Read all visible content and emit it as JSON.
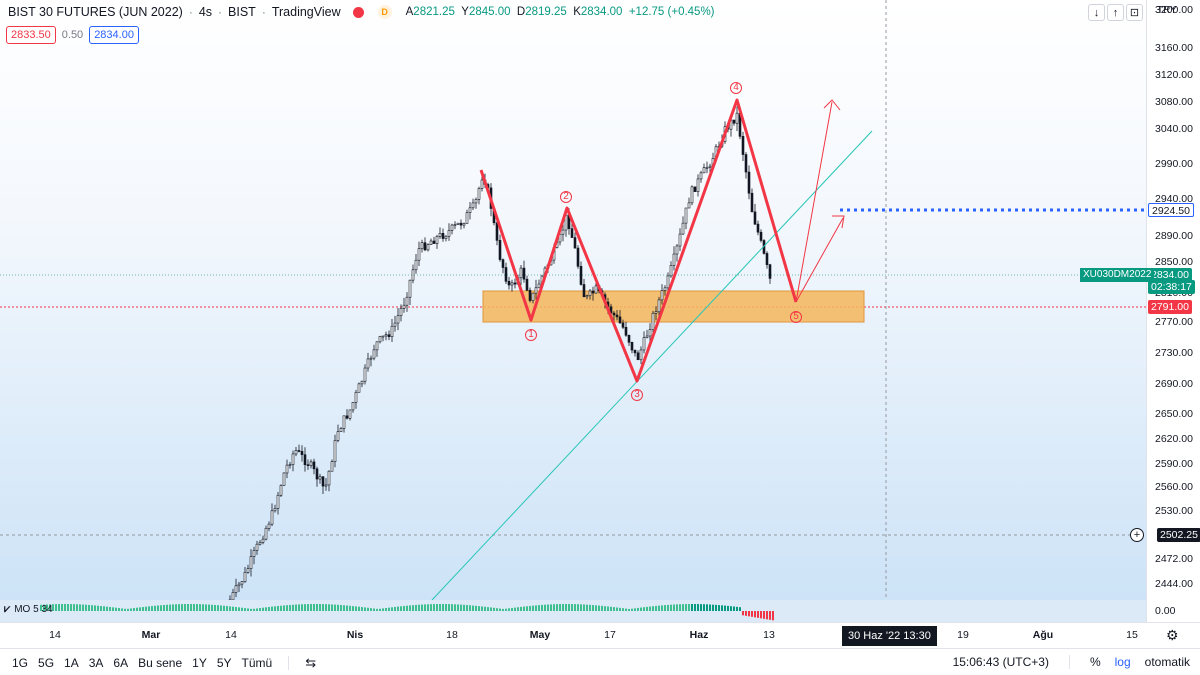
{
  "header": {
    "title": "BIST 30 FUTURES (JUN 2022)",
    "interval": "4s",
    "exchange": "BIST",
    "source": "TradingView",
    "d_badge": "D",
    "ohlc": {
      "open_label": "A",
      "open": "2821.25",
      "high_label": "Y",
      "high": "2845.00",
      "low_label": "D",
      "low": "2819.25",
      "close_label": "K",
      "close": "2834.00",
      "change": "+12.75 (+0.45%)"
    },
    "sell": "2833.50",
    "spread": "0.50",
    "buy": "2834.00",
    "buttons": [
      "↓",
      "↑",
      "⊡"
    ]
  },
  "price_scale": {
    "currency": "TRY",
    "ticks": [
      "3200.00",
      "3160.00",
      "3120.00",
      "3080.00",
      "3040.00",
      "2990.00",
      "2940.00",
      "2890.00",
      "2850.00",
      "2810.00",
      "2770.00",
      "2730.00",
      "2690.00",
      "2650.00",
      "2620.00",
      "2590.00",
      "2560.00",
      "2530.00",
      "2472.00",
      "2444.00"
    ],
    "labels": {
      "blue_level": "2924.50",
      "symbol": "XU030DM2022",
      "last_price": "2834.00",
      "countdown": "02:38:17",
      "red_level": "2791.00",
      "crosshair": "2502.25",
      "indicator_zero": "0.00"
    }
  },
  "indicator": {
    "label": "MO 5 34"
  },
  "time_axis": {
    "ticks": [
      {
        "label": "14",
        "bold": false
      },
      {
        "label": "Mar",
        "bold": true
      },
      {
        "label": "14",
        "bold": false
      },
      {
        "label": "Nis",
        "bold": true
      },
      {
        "label": "18",
        "bold": false
      },
      {
        "label": "May",
        "bold": true
      },
      {
        "label": "17",
        "bold": false
      },
      {
        "label": "Haz",
        "bold": true
      },
      {
        "label": "13",
        "bold": false
      },
      {
        "label": "19",
        "bold": false
      },
      {
        "label": "Ağu",
        "bold": true
      },
      {
        "label": "15",
        "bold": false
      }
    ],
    "cursor_label": "30 Haz '22   13:30"
  },
  "bottom_bar": {
    "ranges": [
      "1G",
      "5G",
      "1A",
      "3A",
      "6A",
      "Bu sene",
      "1Y",
      "5Y",
      "Tümü"
    ],
    "clock": "15:06:43 (UTC+3)",
    "percent": "%",
    "log": "log",
    "auto": "otomatik"
  },
  "wave_labels": [
    "1",
    "2",
    "3",
    "4",
    "5"
  ],
  "colors": {
    "bull": "#089981",
    "bear": "#f23645",
    "accent": "#2962ff",
    "zone": "#f5b65a",
    "trendline": "#26c6b6"
  }
}
